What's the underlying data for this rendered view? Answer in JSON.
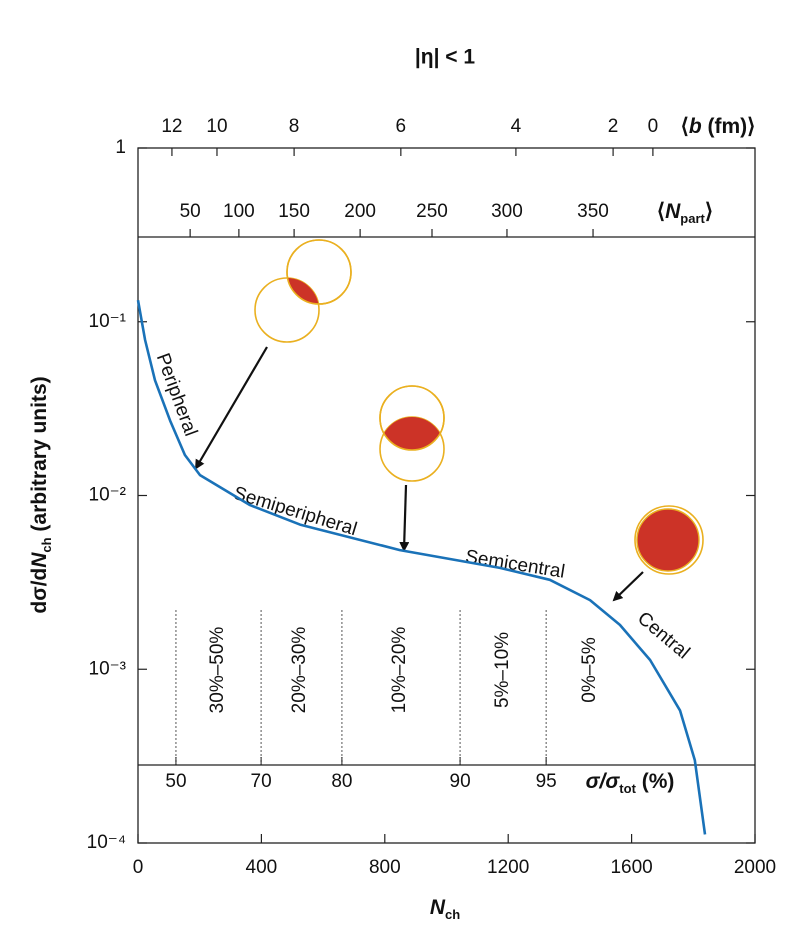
{
  "chart_data": {
    "type": "line",
    "title": "|η| < 1",
    "x_label": [
      {
        "text": "N",
        "italic": true
      },
      {
        "text": "ch",
        "sub": true
      }
    ],
    "y_label": [
      {
        "text": "dσ/d"
      },
      {
        "text": "N",
        "italic": true
      },
      {
        "text": "ch",
        "sub": true
      },
      {
        "text": " (arbitrary units)"
      }
    ],
    "xlim": [
      0,
      2000
    ],
    "xticks": [
      0,
      400,
      800,
      1200,
      1600,
      2000
    ],
    "ylim": [
      0.0001,
      1
    ],
    "log_y": true,
    "yticks": [
      {
        "value": 0.0001,
        "label": "10⁻⁴"
      },
      {
        "value": 0.001,
        "label": "10⁻³"
      },
      {
        "value": 0.01,
        "label": "10⁻²"
      },
      {
        "value": 0.1,
        "label": "10⁻¹"
      },
      1
    ],
    "color": "#1a72b8",
    "x": [
      0,
      23,
      55,
      104,
      152,
      201,
      363,
      525,
      849,
      1173,
      1335,
      1465,
      1562,
      1660,
      1757,
      1805,
      1838
    ],
    "values": [
      0.133,
      0.0785,
      0.046,
      0.027,
      0.0171,
      0.0131,
      0.0088,
      0.0068,
      0.00485,
      0.00383,
      0.00327,
      0.0025,
      0.0018,
      0.00113,
      0.00058,
      0.0003,
      0.000112
    ],
    "b_axis": {
      "label": [
        {
          "text": "⟨"
        },
        {
          "text": "b",
          "italic": true
        },
        {
          "text": " (fm)⟩"
        }
      ],
      "ticks": [
        12,
        10,
        8,
        6,
        4,
        2,
        0
      ],
      "at_x": [
        110,
        256,
        506,
        852,
        1225,
        1540,
        1669
      ]
    },
    "npart_axis": {
      "label": [
        {
          "text": "⟨"
        },
        {
          "text": "N",
          "italic": true
        },
        {
          "text": "part",
          "sub": true
        },
        {
          "text": "⟩"
        }
      ],
      "ticks": [
        50,
        100,
        150,
        200,
        250,
        300,
        350
      ],
      "at_x": [
        169,
        327,
        506,
        720,
        953,
        1196,
        1475
      ]
    },
    "centrality_axis": {
      "label": [
        {
          "text": "σ/σ",
          "italic": true
        },
        {
          "text": "tot",
          "sub": true
        },
        {
          "text": " (%)"
        }
      ],
      "ticks": [
        50,
        70,
        80,
        90,
        95
      ],
      "at_x": [
        123,
        399,
        661,
        1044,
        1323
      ]
    },
    "centrality_ranges": [
      "30%–50%",
      "20%–30%",
      "10%–20%",
      "5%–10%",
      "0%–5%"
    ],
    "annotations": [
      "Peripheral",
      "Semiperipheral",
      "Semicentral",
      "Central"
    ]
  }
}
